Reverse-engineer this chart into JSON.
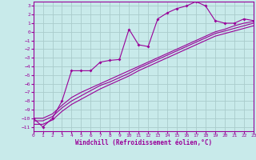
{
  "xlabel": "Windchill (Refroidissement éolien,°C)",
  "bg_color": "#c8eaea",
  "line_color": "#990099",
  "grid_color": "#aacccc",
  "x_data": [
    0,
    1,
    2,
    3,
    4,
    5,
    6,
    7,
    8,
    9,
    10,
    11,
    12,
    13,
    14,
    15,
    16,
    17,
    18,
    19,
    20,
    21,
    22,
    23
  ],
  "y_measured": [
    -10.0,
    -11.0,
    -10.0,
    -8.0,
    -4.5,
    -4.5,
    -4.5,
    -3.5,
    -3.3,
    -3.2,
    0.3,
    -1.5,
    -1.7,
    1.5,
    2.2,
    2.7,
    3.0,
    3.5,
    3.0,
    1.3,
    1.0,
    1.0,
    1.5,
    1.3
  ],
  "y_line1": [
    -10.0,
    -10.0,
    -9.5,
    -8.5,
    -7.6,
    -7.0,
    -6.5,
    -6.0,
    -5.5,
    -5.0,
    -4.5,
    -4.0,
    -3.5,
    -3.0,
    -2.5,
    -2.0,
    -1.5,
    -1.0,
    -0.5,
    0.0,
    0.3,
    0.7,
    1.0,
    1.2
  ],
  "y_line2": [
    -10.3,
    -10.3,
    -9.8,
    -8.8,
    -8.0,
    -7.4,
    -6.8,
    -6.2,
    -5.8,
    -5.3,
    -4.8,
    -4.2,
    -3.7,
    -3.2,
    -2.7,
    -2.2,
    -1.7,
    -1.2,
    -0.7,
    -0.2,
    0.1,
    0.4,
    0.7,
    1.0
  ],
  "y_line3": [
    -10.7,
    -10.7,
    -10.2,
    -9.2,
    -8.4,
    -7.8,
    -7.2,
    -6.6,
    -6.1,
    -5.6,
    -5.1,
    -4.5,
    -4.0,
    -3.5,
    -3.0,
    -2.5,
    -2.0,
    -1.5,
    -1.0,
    -0.5,
    -0.2,
    0.1,
    0.4,
    0.7
  ],
  "xlim": [
    0,
    23
  ],
  "ylim": [
    -11.5,
    3.5
  ],
  "yticks": [
    3,
    2,
    1,
    0,
    -1,
    -2,
    -3,
    -4,
    -5,
    -6,
    -7,
    -8,
    -9,
    -10,
    -11
  ],
  "xticks": [
    0,
    1,
    2,
    3,
    4,
    5,
    6,
    7,
    8,
    9,
    10,
    11,
    12,
    13,
    14,
    15,
    16,
    17,
    18,
    19,
    20,
    21,
    22,
    23
  ]
}
